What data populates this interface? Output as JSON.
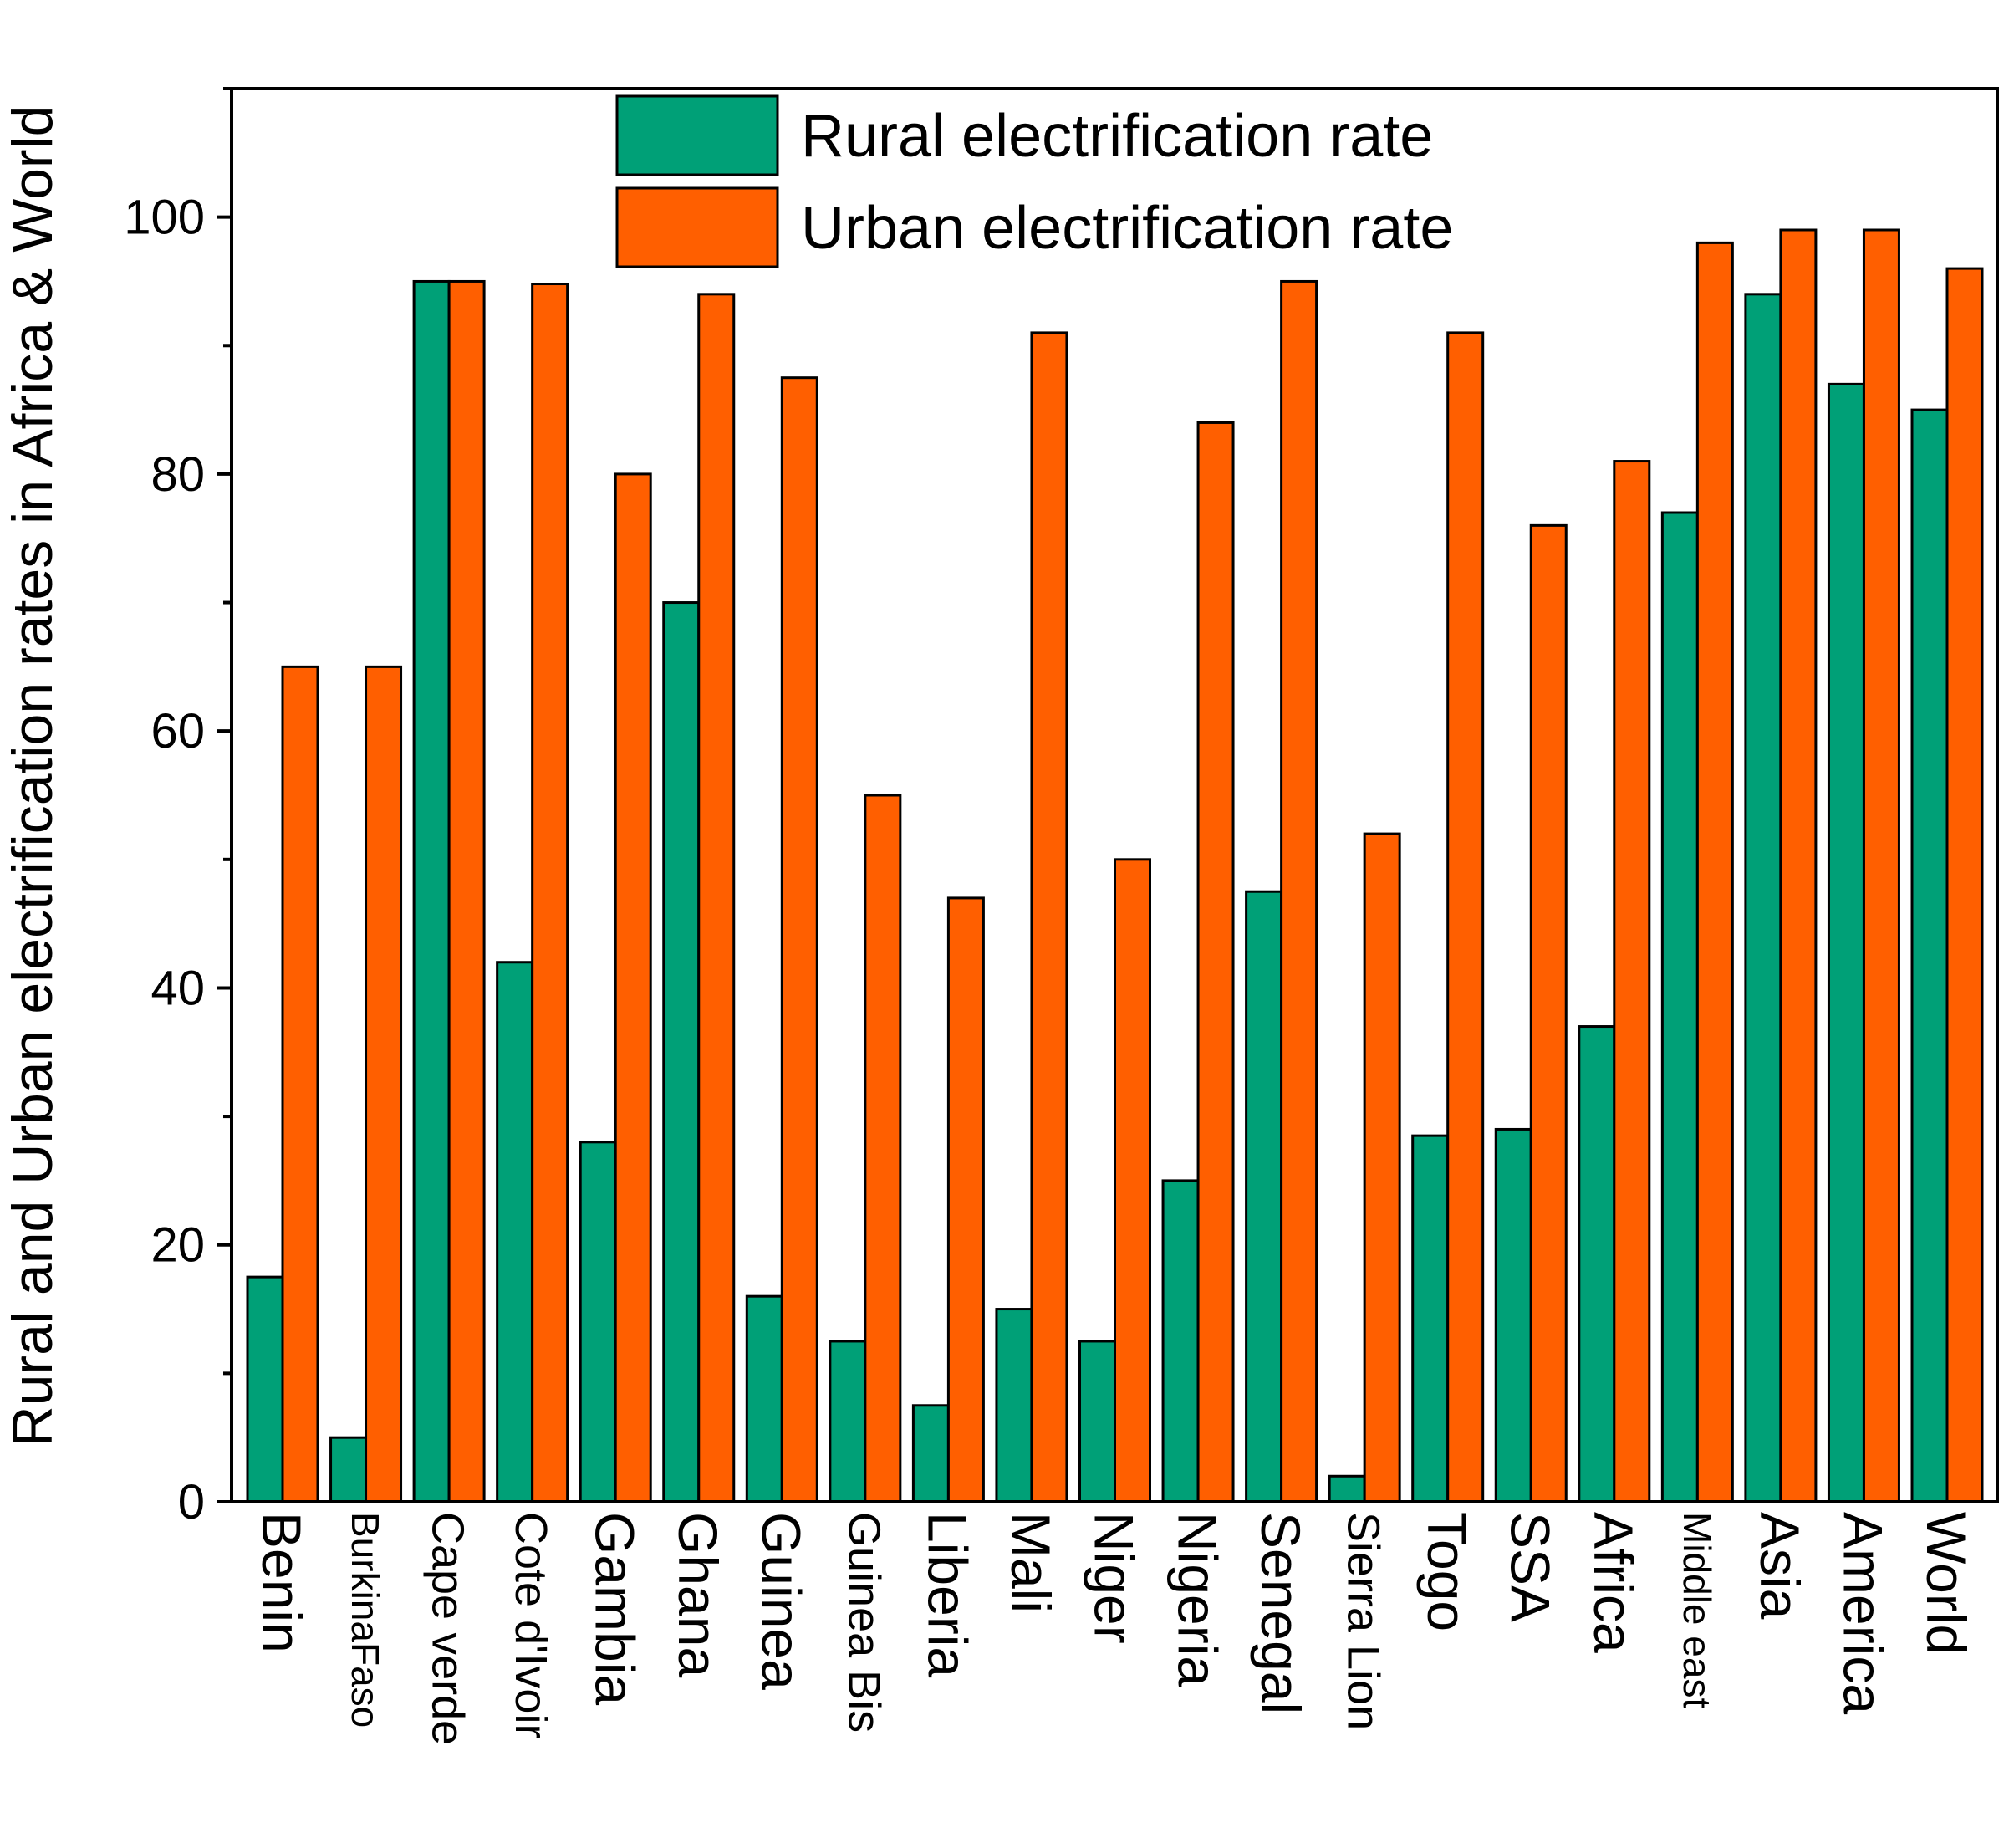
{
  "chart_data": {
    "type": "bar",
    "title": "",
    "xlabel": "",
    "ylabel": "Rural and Urban electrification rates in Africa & World",
    "ylim": [
      0,
      110
    ],
    "yticks": [
      0,
      20,
      40,
      60,
      80,
      100
    ],
    "ytick_labels": [
      "0",
      "20",
      "40",
      "60",
      "80",
      "100"
    ],
    "categories": [
      "Benin",
      "BurkinaFaso",
      "Cape verde",
      "Cote d'Ivoir",
      "Gambia",
      "Ghana",
      "Guinea",
      "Guinea Bis",
      "Liberia",
      "Mali",
      "Niger",
      "Nigeria",
      "Senegal",
      "Sierra Lion",
      "Togo",
      "SSA",
      "Africa",
      "Middle east",
      "Asia",
      "America",
      "World"
    ],
    "series": [
      {
        "name": "Rural electrification rate",
        "color": "#00A077",
        "values": [
          17.5,
          5,
          95,
          42,
          28,
          70,
          16,
          12.5,
          7.5,
          15,
          12.5,
          25,
          47.5,
          2,
          28.5,
          29,
          37,
          77,
          94,
          87,
          85
        ]
      },
      {
        "name": "Urban electrification rate",
        "color": "#FF5F00",
        "values": [
          65,
          65,
          95,
          94.8,
          80,
          94,
          87.5,
          55,
          47,
          91,
          50,
          84,
          95,
          52,
          91,
          76,
          81,
          98,
          99,
          99,
          96
        ]
      }
    ],
    "legend_position": "top-center",
    "grid": false
  }
}
